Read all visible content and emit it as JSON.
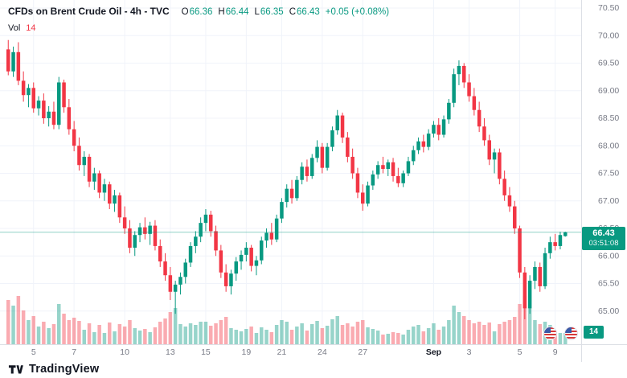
{
  "header": {
    "symbol_title": "CFDs on Brent Crude Oil - 4h - TVC",
    "ohlc": {
      "o_label": "O",
      "o": "66.36",
      "h_label": "H",
      "h": "66.44",
      "l_label": "L",
      "l": "66.35",
      "c_label": "C",
      "c": "66.43",
      "change": "+0.05 (+0.08%)"
    },
    "vol_label": "Vol",
    "vol_value": "14"
  },
  "price_axis": {
    "badge": {
      "price": "66.43",
      "countdown": "03:51:08"
    }
  },
  "volume_badge": "14",
  "logo_text": "TradingView",
  "colors": {
    "up": "#089981",
    "down": "#F23645",
    "grid": "#f0f3fa",
    "axis_text": "#787b86",
    "axis_line": "#dcdfe5",
    "bold_tick": "#131722"
  },
  "chart_data": {
    "type": "candlestick",
    "title": "CFDs on Brent Crude Oil - 4h - TVC",
    "timeframe": "4h",
    "exchange": "TVC",
    "last_price": 66.43,
    "ylim": [
      64.4,
      70.6
    ],
    "price_ticks": [
      "70.50",
      "70.00",
      "69.50",
      "69.00",
      "68.50",
      "68.00",
      "67.50",
      "67.00",
      "66.50",
      "66.00",
      "65.50",
      "65.00"
    ],
    "time_ticks": [
      {
        "label": "5",
        "i": 5
      },
      {
        "label": "7",
        "i": 13
      },
      {
        "label": "10",
        "i": 23
      },
      {
        "label": "13",
        "i": 32
      },
      {
        "label": "15",
        "i": 39
      },
      {
        "label": "19",
        "i": 47
      },
      {
        "label": "21",
        "i": 54
      },
      {
        "label": "24",
        "i": 62
      },
      {
        "label": "27",
        "i": 70
      },
      {
        "label": "Sep",
        "i": 84,
        "bold": true
      },
      {
        "label": "3",
        "i": 91
      },
      {
        "label": "5",
        "i": 101
      },
      {
        "label": "9",
        "i": 108
      }
    ],
    "ohlcv": [
      [
        69.75,
        69.92,
        69.28,
        69.35,
        55
      ],
      [
        69.35,
        69.8,
        69.25,
        69.7,
        48
      ],
      [
        69.7,
        69.88,
        69.1,
        69.18,
        60
      ],
      [
        69.18,
        69.35,
        68.8,
        68.92,
        42
      ],
      [
        68.92,
        69.12,
        68.7,
        69.05,
        30
      ],
      [
        69.05,
        69.15,
        68.6,
        68.68,
        35
      ],
      [
        68.68,
        68.9,
        68.55,
        68.82,
        22
      ],
      [
        68.82,
        68.95,
        68.4,
        68.5,
        28
      ],
      [
        68.5,
        68.72,
        68.35,
        68.62,
        20
      ],
      [
        68.62,
        68.8,
        68.3,
        68.38,
        25
      ],
      [
        68.38,
        69.25,
        68.3,
        69.15,
        50
      ],
      [
        69.15,
        69.2,
        68.6,
        68.7,
        38
      ],
      [
        68.7,
        68.85,
        68.2,
        68.3,
        30
      ],
      [
        68.3,
        68.45,
        67.9,
        68.0,
        33
      ],
      [
        68.0,
        68.15,
        67.55,
        67.65,
        29
      ],
      [
        67.65,
        67.9,
        67.45,
        67.8,
        18
      ],
      [
        67.8,
        67.85,
        67.25,
        67.35,
        26
      ],
      [
        67.35,
        67.6,
        67.2,
        67.5,
        15
      ],
      [
        67.5,
        67.55,
        67.05,
        67.15,
        24
      ],
      [
        67.15,
        67.4,
        67.0,
        67.3,
        14
      ],
      [
        67.3,
        67.35,
        66.85,
        66.95,
        27
      ],
      [
        66.95,
        67.2,
        66.8,
        67.1,
        16
      ],
      [
        67.1,
        67.15,
        66.6,
        66.7,
        25
      ],
      [
        66.7,
        66.9,
        66.4,
        66.5,
        22
      ],
      [
        66.5,
        66.65,
        66.05,
        66.15,
        30
      ],
      [
        66.15,
        66.45,
        66.0,
        66.38,
        20
      ],
      [
        66.38,
        66.6,
        66.25,
        66.52,
        17
      ],
      [
        66.52,
        66.7,
        66.3,
        66.4,
        19
      ],
      [
        66.4,
        66.62,
        66.2,
        66.55,
        15
      ],
      [
        66.55,
        66.65,
        66.1,
        66.18,
        21
      ],
      [
        66.18,
        66.3,
        65.8,
        65.9,
        28
      ],
      [
        65.9,
        66.05,
        65.55,
        65.65,
        32
      ],
      [
        65.65,
        65.8,
        65.2,
        65.35,
        40
      ],
      [
        65.35,
        65.55,
        64.95,
        65.48,
        45
      ],
      [
        65.48,
        65.7,
        65.3,
        65.62,
        25
      ],
      [
        65.62,
        65.95,
        65.5,
        65.88,
        22
      ],
      [
        65.88,
        66.25,
        65.8,
        66.18,
        26
      ],
      [
        66.18,
        66.45,
        66.05,
        66.35,
        24
      ],
      [
        66.35,
        66.7,
        66.25,
        66.6,
        28
      ],
      [
        66.6,
        66.85,
        66.45,
        66.75,
        28
      ],
      [
        66.75,
        66.82,
        66.35,
        66.45,
        23
      ],
      [
        66.45,
        66.55,
        66.0,
        66.1,
        26
      ],
      [
        66.1,
        66.2,
        65.6,
        65.7,
        30
      ],
      [
        65.7,
        65.85,
        65.35,
        65.45,
        34
      ],
      [
        65.45,
        65.75,
        65.3,
        65.68,
        20
      ],
      [
        65.68,
        65.98,
        65.55,
        65.9,
        18
      ],
      [
        65.9,
        66.1,
        65.75,
        66.02,
        16
      ],
      [
        66.02,
        66.25,
        65.9,
        66.15,
        19
      ],
      [
        66.15,
        66.2,
        65.72,
        65.82,
        22
      ],
      [
        65.82,
        66.0,
        65.65,
        65.92,
        14
      ],
      [
        65.92,
        66.35,
        65.85,
        66.28,
        21
      ],
      [
        66.28,
        66.5,
        66.15,
        66.42,
        18
      ],
      [
        66.42,
        66.6,
        66.2,
        66.3,
        15
      ],
      [
        66.3,
        66.75,
        66.25,
        66.68,
        24
      ],
      [
        66.68,
        67.05,
        66.6,
        66.98,
        30
      ],
      [
        66.98,
        67.3,
        66.88,
        67.22,
        28
      ],
      [
        67.22,
        67.38,
        66.95,
        67.05,
        18
      ],
      [
        67.05,
        67.45,
        67.0,
        67.38,
        22
      ],
      [
        67.38,
        67.7,
        67.3,
        67.62,
        26
      ],
      [
        67.62,
        67.75,
        67.35,
        67.45,
        17
      ],
      [
        67.45,
        67.85,
        67.4,
        67.78,
        25
      ],
      [
        67.78,
        68.1,
        67.7,
        67.98,
        29
      ],
      [
        67.98,
        68.05,
        67.5,
        67.6,
        20
      ],
      [
        67.6,
        68.05,
        67.55,
        67.98,
        23
      ],
      [
        67.98,
        68.35,
        67.9,
        68.28,
        31
      ],
      [
        68.28,
        68.65,
        68.2,
        68.55,
        35
      ],
      [
        68.55,
        68.6,
        68.05,
        68.15,
        24
      ],
      [
        68.15,
        68.25,
        67.7,
        67.8,
        26
      ],
      [
        67.8,
        67.95,
        67.4,
        67.5,
        22
      ],
      [
        67.5,
        67.6,
        67.05,
        67.15,
        28
      ],
      [
        67.15,
        67.3,
        66.82,
        66.95,
        30
      ],
      [
        66.95,
        67.35,
        66.9,
        67.28,
        21
      ],
      [
        67.28,
        67.55,
        67.2,
        67.48,
        19
      ],
      [
        67.48,
        67.72,
        67.4,
        67.65,
        17
      ],
      [
        67.65,
        67.8,
        67.5,
        67.58,
        12
      ],
      [
        67.58,
        67.75,
        67.45,
        67.7,
        13
      ],
      [
        67.7,
        67.78,
        67.35,
        67.45,
        15
      ],
      [
        67.45,
        67.6,
        67.25,
        67.32,
        14
      ],
      [
        67.32,
        67.55,
        67.25,
        67.5,
        12
      ],
      [
        67.5,
        67.8,
        67.45,
        67.72,
        18
      ],
      [
        67.72,
        68.0,
        67.65,
        67.92,
        22
      ],
      [
        67.92,
        68.15,
        67.85,
        68.08,
        24
      ],
      [
        68.08,
        68.2,
        67.88,
        67.98,
        16
      ],
      [
        67.98,
        68.3,
        67.92,
        68.22,
        20
      ],
      [
        68.22,
        68.45,
        68.15,
        68.38,
        26
      ],
      [
        68.38,
        68.5,
        68.1,
        68.2,
        18
      ],
      [
        68.2,
        68.55,
        68.15,
        68.48,
        22
      ],
      [
        68.48,
        68.85,
        68.4,
        68.78,
        30
      ],
      [
        68.78,
        69.4,
        68.7,
        69.3,
        48
      ],
      [
        69.3,
        69.55,
        69.1,
        69.45,
        40
      ],
      [
        69.45,
        69.5,
        69.05,
        69.15,
        35
      ],
      [
        69.15,
        69.3,
        68.8,
        68.9,
        30
      ],
      [
        68.9,
        69.05,
        68.55,
        68.65,
        26
      ],
      [
        68.65,
        68.8,
        68.25,
        68.35,
        28
      ],
      [
        68.35,
        68.5,
        68.0,
        68.1,
        24
      ],
      [
        68.1,
        68.2,
        67.65,
        67.75,
        27
      ],
      [
        67.75,
        67.95,
        67.5,
        67.88,
        16
      ],
      [
        67.88,
        67.95,
        67.3,
        67.4,
        25
      ],
      [
        67.4,
        67.55,
        67.0,
        67.1,
        28
      ],
      [
        67.1,
        67.25,
        66.8,
        66.9,
        30
      ],
      [
        66.9,
        67.0,
        66.4,
        66.5,
        34
      ],
      [
        66.5,
        66.55,
        65.6,
        65.7,
        50
      ],
      [
        65.7,
        65.8,
        64.85,
        65.05,
        60
      ],
      [
        65.05,
        65.65,
        64.95,
        65.55,
        45
      ],
      [
        65.55,
        65.9,
        65.4,
        65.8,
        30
      ],
      [
        65.8,
        65.88,
        65.35,
        65.45,
        25
      ],
      [
        65.45,
        66.15,
        65.4,
        66.05,
        28
      ],
      [
        66.05,
        66.35,
        65.95,
        66.25,
        24
      ],
      [
        66.25,
        66.4,
        66.1,
        66.18,
        15
      ],
      [
        66.18,
        66.44,
        66.12,
        66.38,
        14
      ],
      [
        66.36,
        66.44,
        66.35,
        66.43,
        14
      ]
    ]
  }
}
